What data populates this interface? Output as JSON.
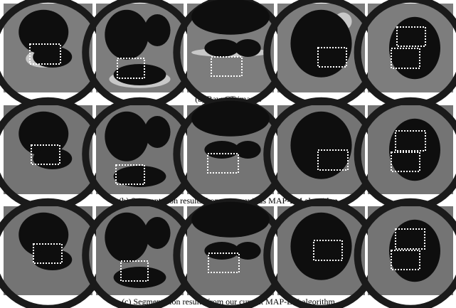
{
  "rows": [
    {
      "caption": "(a) Raw CT images"
    },
    {
      "caption": "(b) Segmentation results from our previous MAP-EM algorithm"
    },
    {
      "caption": "(c) Segmentation results from our current MAP-EM algorithm"
    }
  ]
}
